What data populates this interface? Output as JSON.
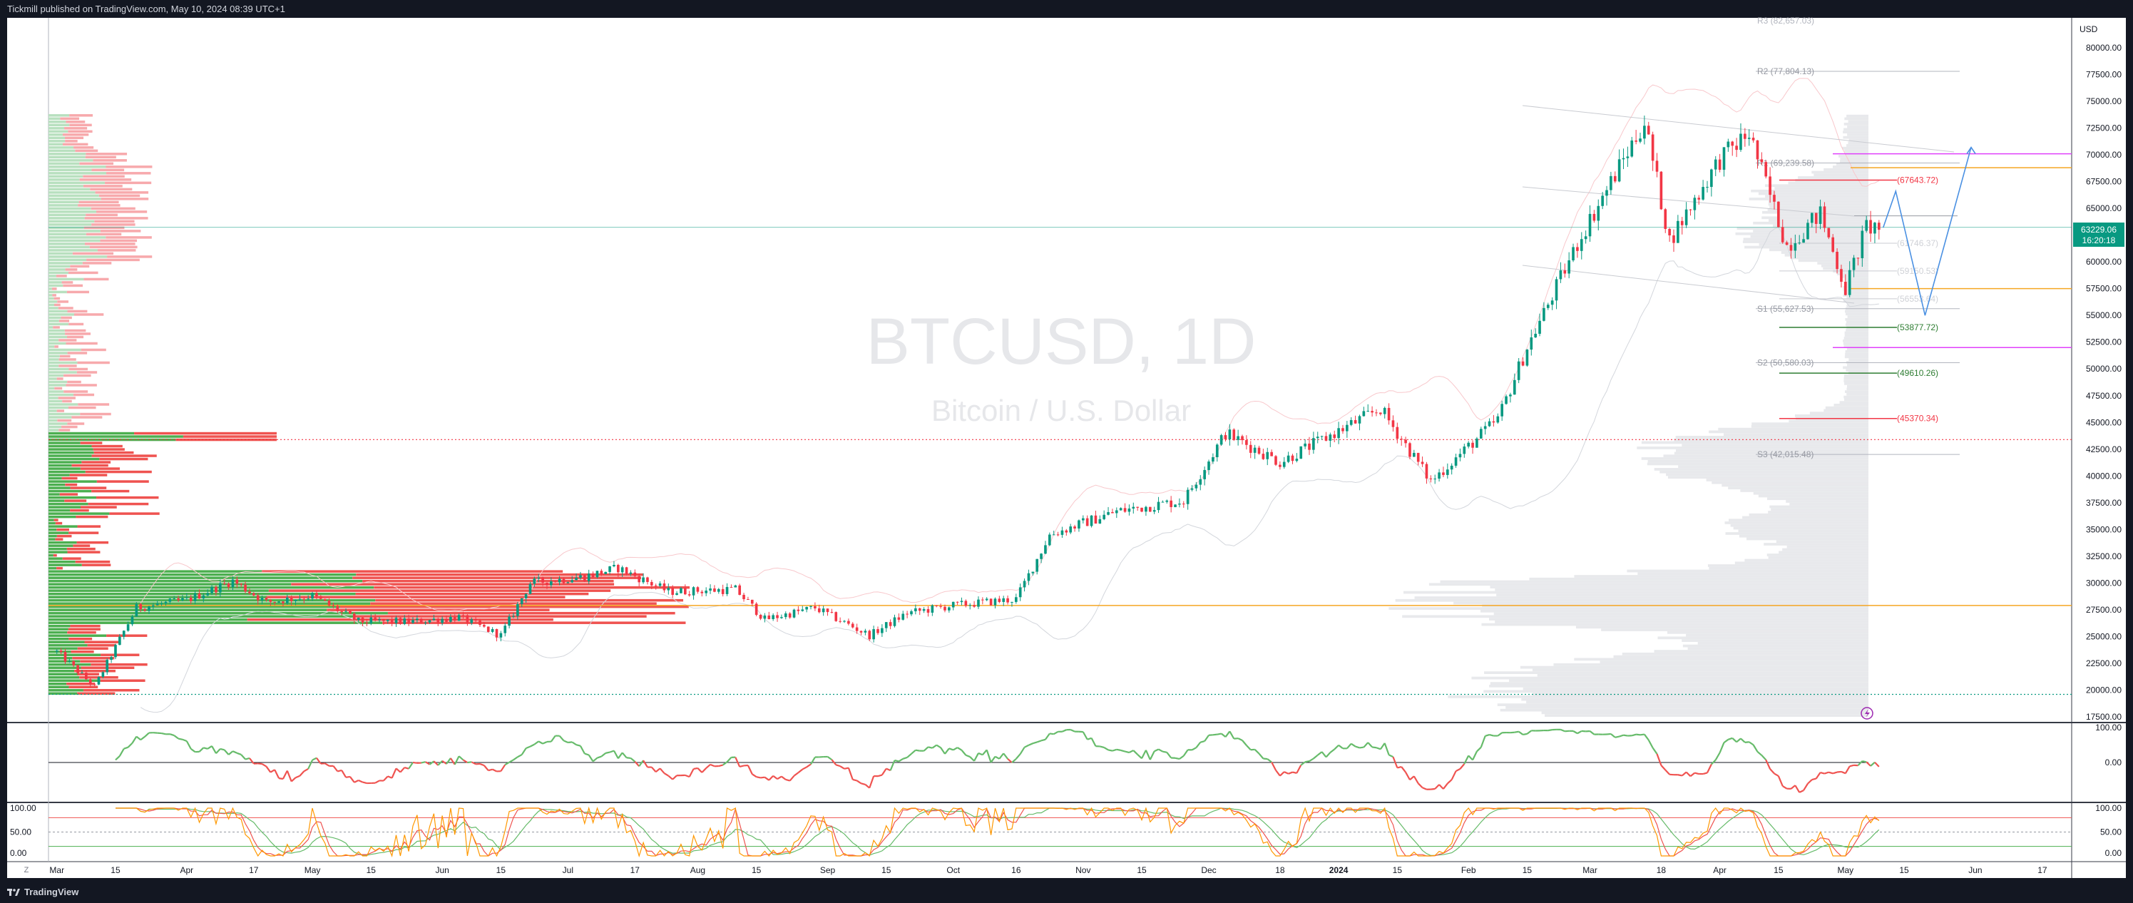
{
  "header": {
    "publish_line": "Tickmill published on TradingView.com, May 10, 2024 08:39 UTC+1"
  },
  "watermark": {
    "symbol": "BTCUSD, 1D",
    "description": "Bitcoin / U.S. Dollar"
  },
  "footer": {
    "brand": "TradingView",
    "brand_icon": "tradingview-logo-icon",
    "scale_toggle": "Z"
  },
  "colors": {
    "background": "#131722",
    "pane": "#ffffff",
    "up": "#089981",
    "up_bright": "#26a69a",
    "down": "#f23645",
    "price_tag": "#089981",
    "orange_line": "#f5a623",
    "magenta_line": "#e040fb",
    "projection": "#4a90e2"
  },
  "price_axis": {
    "currency": "USD",
    "ticks": [
      "80000.00",
      "77500.00",
      "75000.00",
      "72500.00",
      "70000.00",
      "67500.00",
      "65000.00",
      "62500.00",
      "60000.00",
      "57500.00",
      "55000.00",
      "52500.00",
      "50000.00",
      "47500.00",
      "45000.00",
      "42500.00",
      "40000.00",
      "37500.00",
      "35000.00",
      "32500.00",
      "30000.00",
      "27500.00",
      "25000.00",
      "22500.00",
      "20000.00",
      "17500.00"
    ],
    "last_price": "63229.06",
    "countdown": "16:20:18"
  },
  "time_axis": {
    "labels": [
      "Mar",
      "15",
      "Apr",
      "17",
      "May",
      "15",
      "Jun",
      "15",
      "Jul",
      "17",
      "Aug",
      "15",
      "Sep",
      "15",
      "Oct",
      "16",
      "Nov",
      "15",
      "Dec",
      "18",
      "2024",
      "15",
      "Feb",
      "15",
      "Mar",
      "18",
      "Apr",
      "15",
      "May",
      "15",
      "Jun",
      "17"
    ]
  },
  "pivot_levels": [
    {
      "label": "R3 (82,657.03)",
      "value": 82657.03
    },
    {
      "label": "R2 (77,804.13)",
      "value": 77804.13
    },
    {
      "label": "R1 (69,239.58)",
      "value": 69239.58
    },
    {
      "label": "S1 (55,627.53)",
      "value": 55627.53
    },
    {
      "label": "S2 (50,580.03)",
      "value": 50580.03
    },
    {
      "label": "S3 (42,015.48)",
      "value": 42015.48
    }
  ],
  "level_labels": [
    {
      "label": "(67643.72)",
      "value": 67643.72,
      "kind": "red"
    },
    {
      "label": "(53877.72)",
      "value": 53877.72,
      "kind": "green"
    },
    {
      "label": "(49610.26)",
      "value": 49610.26,
      "kind": "green"
    },
    {
      "label": "(45370.34)",
      "value": 45370.34,
      "kind": "red"
    }
  ],
  "faded_labels": [
    "(61746.37)",
    "(59150.53)",
    "(56553.64)"
  ],
  "horizontal_levels": {
    "dotted_red": 43400,
    "dotted_green": 19600,
    "orange_upper": 68800,
    "orange_middle": 57500,
    "orange_lower": 27900,
    "magenta_upper": 70100,
    "magenta_lower": 52000,
    "last_price_line": 63229.06,
    "gray_right_line": 64300
  },
  "rsi_pane": {
    "ticks": [
      "100.00",
      "0.00"
    ]
  },
  "stoch_pane": {
    "ticks_left": [
      "100.00",
      "50.00",
      "0.00"
    ],
    "ticks_right": [
      "100.00",
      "50.00",
      "0.00"
    ]
  },
  "chart_data": {
    "type": "candlestick",
    "symbol": "BTCUSD",
    "timeframe": "1D",
    "ylim": [
      17500,
      82500
    ],
    "x_range": [
      "2023-02-27",
      "2024-06-24"
    ],
    "weekly_close_points": [
      [
        "2023-03-01",
        23600
      ],
      [
        "2023-03-10",
        20300
      ],
      [
        "2023-03-20",
        27700
      ],
      [
        "2023-04-01",
        28400
      ],
      [
        "2023-04-12",
        30200
      ],
      [
        "2023-04-20",
        28200
      ],
      [
        "2023-05-01",
        28800
      ],
      [
        "2023-05-12",
        26400
      ],
      [
        "2023-05-25",
        26400
      ],
      [
        "2023-06-05",
        26800
      ],
      [
        "2023-06-15",
        25100
      ],
      [
        "2023-06-22",
        30000
      ],
      [
        "2023-07-05",
        30600
      ],
      [
        "2023-07-13",
        31400
      ],
      [
        "2023-07-25",
        29200
      ],
      [
        "2023-08-10",
        29400
      ],
      [
        "2023-08-17",
        26600
      ],
      [
        "2023-08-29",
        27700
      ],
      [
        "2023-09-11",
        25100
      ],
      [
        "2023-09-20",
        27200
      ],
      [
        "2023-10-01",
        27900
      ],
      [
        "2023-10-16",
        28500
      ],
      [
        "2023-10-24",
        34500
      ],
      [
        "2023-11-09",
        36700
      ],
      [
        "2023-11-25",
        37700
      ],
      [
        "2023-12-05",
        44000
      ],
      [
        "2023-12-18",
        41300
      ],
      [
        "2024-01-01",
        44200
      ],
      [
        "2024-01-11",
        46300
      ],
      [
        "2024-01-23",
        39500
      ],
      [
        "2024-02-08",
        45300
      ],
      [
        "2024-02-15",
        52000
      ],
      [
        "2024-02-28",
        62500
      ],
      [
        "2024-03-14",
        73100
      ],
      [
        "2024-03-20",
        62000
      ],
      [
        "2024-04-01",
        69600
      ],
      [
        "2024-04-08",
        72000
      ],
      [
        "2024-04-17",
        61500
      ],
      [
        "2024-04-25",
        64500
      ],
      [
        "2024-05-01",
        57500
      ],
      [
        "2024-05-06",
        63300
      ],
      [
        "2024-05-09",
        63229
      ]
    ],
    "projection_path": [
      [
        "2024-05-10",
        63200
      ],
      [
        "2024-05-13",
        66600
      ],
      [
        "2024-05-20",
        55000
      ],
      [
        "2024-05-31",
        70700
      ]
    ],
    "volume_profile": "left-anchored horizontal volume-by-price histogram, green (up) and red (down)",
    "indicators": [
      "RSI",
      "Stochastic",
      "Standard pivot points",
      "Bollinger-style bands",
      "Right-side volume profile"
    ]
  }
}
